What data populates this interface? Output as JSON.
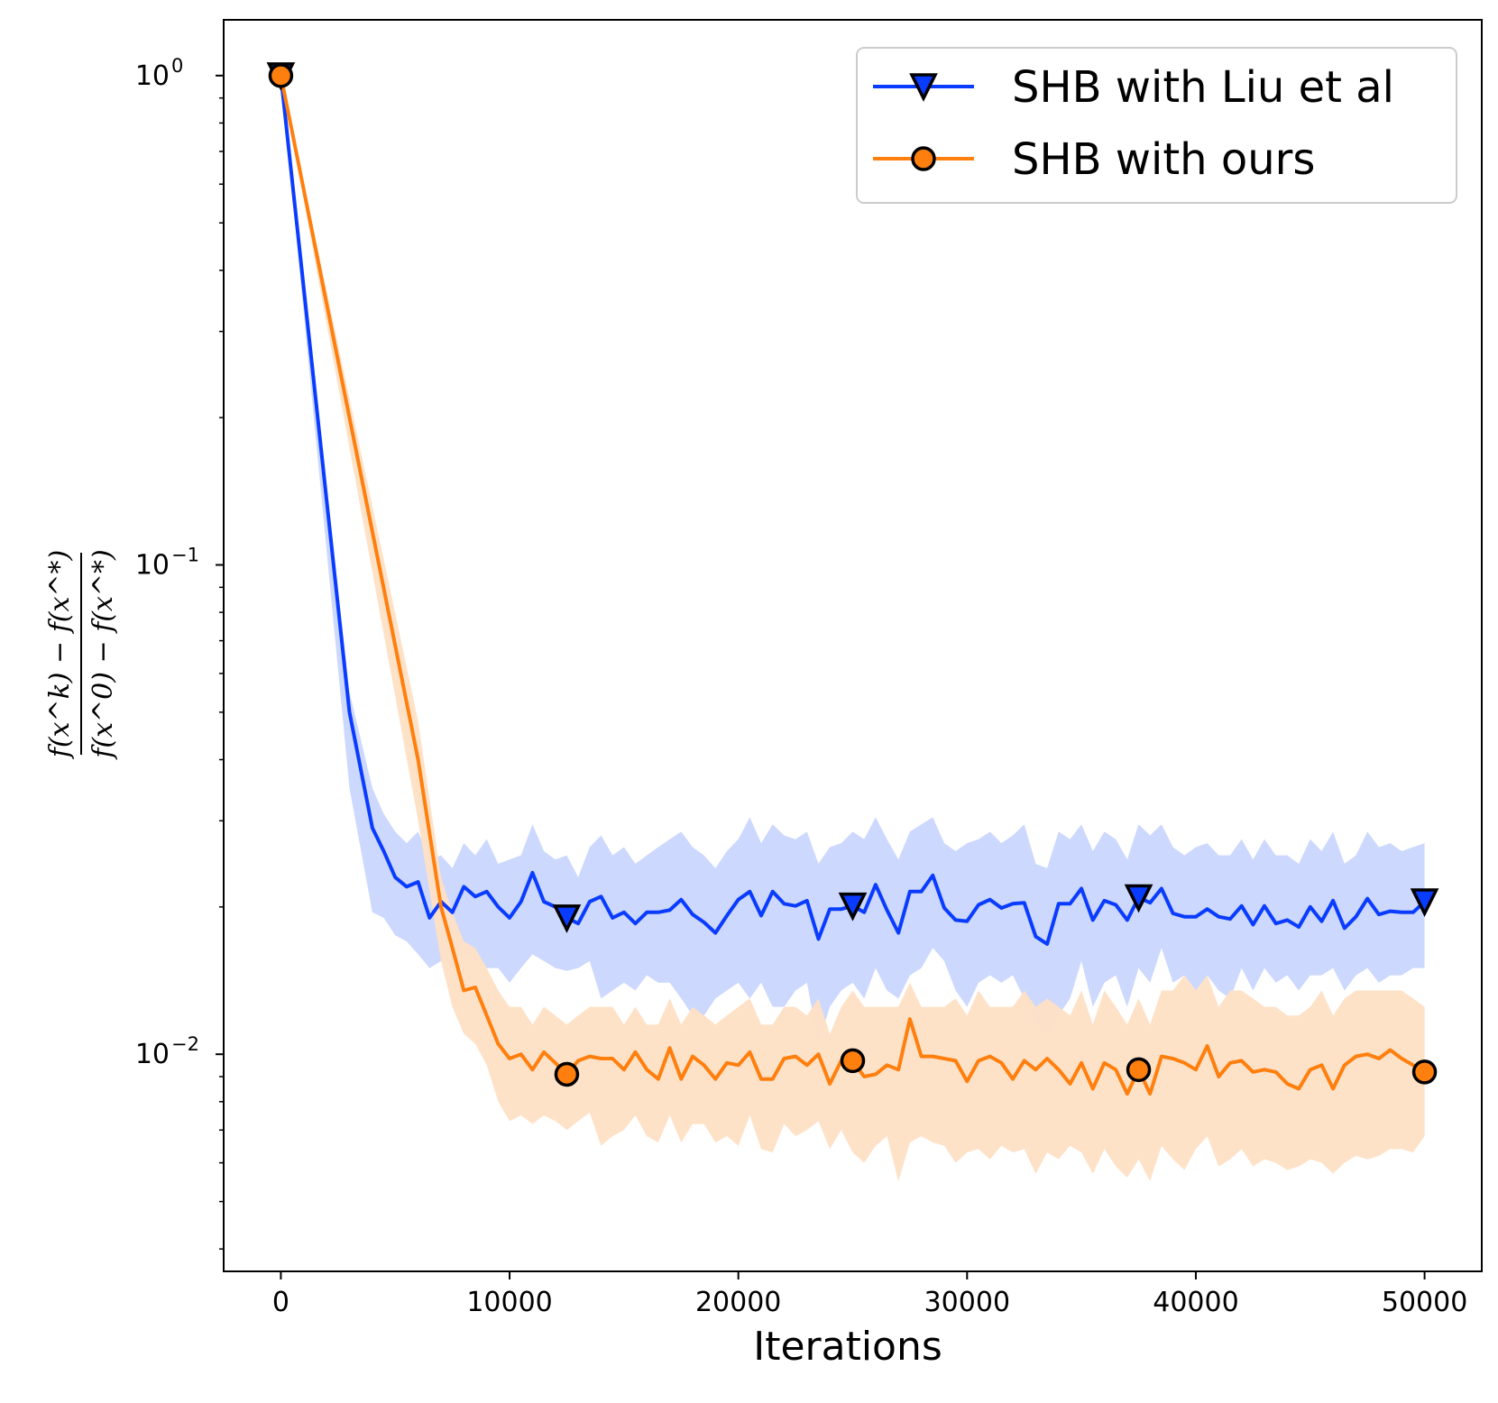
{
  "chart_data": {
    "type": "line",
    "yscale": "log",
    "xlabel": "Iterations",
    "ylabel": {
      "numerator": "f(x^k) − f(x^*)",
      "denominator": "f(x^0) − f(x^*)"
    },
    "xlim": [
      -2500,
      52500
    ],
    "ylim": [
      0.0036,
      1.3
    ],
    "xticks": [
      0,
      10000,
      20000,
      30000,
      40000,
      50000
    ],
    "xtick_labels": [
      "0",
      "10000",
      "20000",
      "30000",
      "40000",
      "50000"
    ],
    "yticks": [
      {
        "value": 1,
        "base": "10",
        "exp": "0"
      },
      {
        "value": 0.1,
        "base": "10",
        "exp": "−1"
      },
      {
        "value": 0.01,
        "base": "10",
        "exp": "−2"
      }
    ],
    "legend_position": "upper right",
    "series": [
      {
        "name": "SHB with Liu et al",
        "color": "#0a3cff",
        "band_color": "#c9d6fd",
        "marker": "triangle-down",
        "marker_x": [
          0,
          12500,
          25000,
          37500,
          50000
        ],
        "x": [
          0,
          3000,
          4000,
          4500,
          5000,
          5500,
          6000,
          6500,
          7000,
          7500,
          8000,
          8500,
          9000,
          9500,
          10000,
          10500,
          11000,
          11500,
          12000,
          12500,
          13000,
          13500,
          14000,
          14500,
          15000,
          15500,
          16000,
          16500,
          17000,
          17500,
          18000,
          18500,
          19000,
          19500,
          20000,
          20500,
          21000,
          21500,
          22000,
          22500,
          23000,
          23500,
          24000,
          24500,
          25000,
          25500,
          26000,
          26500,
          27000,
          27500,
          28000,
          28500,
          29000,
          29500,
          30000,
          30500,
          31000,
          31500,
          32000,
          32500,
          33000,
          33500,
          34000,
          34500,
          35000,
          35500,
          36000,
          36500,
          37000,
          37500,
          38000,
          38500,
          39000,
          39500,
          40000,
          40500,
          41000,
          41500,
          42000,
          42500,
          43000,
          43500,
          44000,
          44500,
          45000,
          45500,
          46000,
          46500,
          47000,
          47500,
          48000,
          48500,
          49000,
          49500,
          50000
        ],
        "y": [
          1.0,
          0.05,
          0.029,
          0.026,
          0.023,
          0.022,
          0.0225,
          0.019,
          0.0205,
          0.0195,
          0.022,
          0.021,
          0.0215,
          0.02,
          0.019,
          0.0205,
          0.0235,
          0.0205,
          0.02,
          0.019,
          0.0185,
          0.0205,
          0.021,
          0.019,
          0.0195,
          0.0185,
          0.0195,
          0.0195,
          0.0197,
          0.0207,
          0.0193,
          0.0186,
          0.0177,
          0.0192,
          0.0207,
          0.0215,
          0.0192,
          0.0215,
          0.0203,
          0.0201,
          0.0206,
          0.0172,
          0.0198,
          0.0198,
          0.0201,
          0.0195,
          0.0222,
          0.0197,
          0.0177,
          0.0215,
          0.0215,
          0.0232,
          0.0199,
          0.0188,
          0.0187,
          0.0202,
          0.0207,
          0.0199,
          0.0203,
          0.0204,
          0.0174,
          0.0168,
          0.0203,
          0.0203,
          0.0218,
          0.0188,
          0.0206,
          0.0202,
          0.0188,
          0.0209,
          0.0204,
          0.0218,
          0.0194,
          0.0191,
          0.0191,
          0.0198,
          0.0191,
          0.0189,
          0.0201,
          0.0184,
          0.0201,
          0.0185,
          0.0188,
          0.0182,
          0.02,
          0.0187,
          0.0206,
          0.0181,
          0.0191,
          0.0208,
          0.0193,
          0.0196,
          0.0195,
          0.0195,
          0.0205
        ],
        "lower": [
          1.0,
          0.035,
          0.0195,
          0.019,
          0.0175,
          0.017,
          0.016,
          0.015,
          0.0155,
          0.015,
          0.016,
          0.0155,
          0.015,
          0.015,
          0.014,
          0.015,
          0.016,
          0.0155,
          0.015,
          0.0148,
          0.015,
          0.0155,
          0.013,
          0.0135,
          0.014,
          0.0135,
          0.0145,
          0.014,
          0.014,
          0.013,
          0.012,
          0.012,
          0.013,
          0.0135,
          0.014,
          0.013,
          0.014,
          0.0125,
          0.0125,
          0.0135,
          0.014,
          0.0105,
          0.0125,
          0.0135,
          0.014,
          0.013,
          0.015,
          0.0135,
          0.013,
          0.0145,
          0.015,
          0.0165,
          0.0155,
          0.0135,
          0.0125,
          0.014,
          0.0145,
          0.014,
          0.0145,
          0.013,
          0.0115,
          0.0108,
          0.012,
          0.013,
          0.0155,
          0.0125,
          0.014,
          0.0145,
          0.0125,
          0.015,
          0.014,
          0.0165,
          0.014,
          0.0145,
          0.0135,
          0.0145,
          0.0135,
          0.013,
          0.015,
          0.0135,
          0.015,
          0.014,
          0.0145,
          0.0135,
          0.0145,
          0.0145,
          0.015,
          0.0135,
          0.0145,
          0.015,
          0.014,
          0.0145,
          0.0145,
          0.015,
          0.015
        ],
        "upper": [
          1.0,
          0.055,
          0.035,
          0.031,
          0.0285,
          0.027,
          0.0285,
          0.025,
          0.0255,
          0.024,
          0.027,
          0.0255,
          0.0275,
          0.0245,
          0.025,
          0.0255,
          0.0295,
          0.026,
          0.025,
          0.0255,
          0.023,
          0.0265,
          0.028,
          0.0255,
          0.0265,
          0.0245,
          0.0255,
          0.0265,
          0.0275,
          0.0285,
          0.0265,
          0.0255,
          0.024,
          0.026,
          0.0275,
          0.0305,
          0.027,
          0.0295,
          0.028,
          0.0275,
          0.0285,
          0.0245,
          0.0265,
          0.027,
          0.0285,
          0.0275,
          0.0305,
          0.0275,
          0.025,
          0.0285,
          0.0295,
          0.0305,
          0.027,
          0.026,
          0.027,
          0.0275,
          0.0285,
          0.027,
          0.028,
          0.0295,
          0.0245,
          0.024,
          0.0285,
          0.0275,
          0.0295,
          0.026,
          0.0285,
          0.0275,
          0.025,
          0.0295,
          0.028,
          0.0295,
          0.0265,
          0.0255,
          0.0265,
          0.027,
          0.0255,
          0.0255,
          0.0275,
          0.025,
          0.0275,
          0.0255,
          0.0255,
          0.0245,
          0.0275,
          0.026,
          0.0285,
          0.0245,
          0.0255,
          0.0285,
          0.0265,
          0.027,
          0.026,
          0.0265,
          0.027
        ]
      },
      {
        "name": "SHB with ours",
        "color": "#ff7f0e",
        "band_color": "#fee0c5",
        "marker": "circle",
        "marker_x": [
          0,
          12500,
          25000,
          37500,
          50000
        ],
        "x": [
          0,
          6000,
          7000,
          7500,
          8000,
          8500,
          9000,
          9500,
          10000,
          10500,
          11000,
          11500,
          12000,
          12500,
          13000,
          13500,
          14000,
          14500,
          15000,
          15500,
          16000,
          16500,
          17000,
          17500,
          18000,
          18500,
          19000,
          19500,
          20000,
          20500,
          21000,
          21500,
          22000,
          22500,
          23000,
          23500,
          24000,
          24500,
          25000,
          25500,
          26000,
          26500,
          27000,
          27500,
          28000,
          28500,
          29000,
          29500,
          30000,
          30500,
          31000,
          31500,
          32000,
          32500,
          33000,
          33500,
          34000,
          34500,
          35000,
          35500,
          36000,
          36500,
          37000,
          37500,
          38000,
          38500,
          39000,
          39500,
          40000,
          40500,
          41000,
          41500,
          42000,
          42500,
          43000,
          43500,
          44000,
          44500,
          45000,
          45500,
          46000,
          46500,
          47000,
          47500,
          48000,
          48500,
          49000,
          49500,
          50000
        ],
        "y": [
          1.0,
          0.04,
          0.02,
          0.0165,
          0.0135,
          0.0137,
          0.012,
          0.0105,
          0.0098,
          0.01,
          0.0093,
          0.0101,
          0.0096,
          0.0091,
          0.0097,
          0.0099,
          0.0098,
          0.0098,
          0.0093,
          0.0101,
          0.0093,
          0.0089,
          0.0103,
          0.0089,
          0.0099,
          0.0095,
          0.0089,
          0.0096,
          0.0095,
          0.0101,
          0.0089,
          0.0089,
          0.0098,
          0.0099,
          0.0095,
          0.01,
          0.0087,
          0.0097,
          0.0097,
          0.009,
          0.0091,
          0.0095,
          0.0093,
          0.0118,
          0.0099,
          0.0099,
          0.0098,
          0.0097,
          0.0088,
          0.0097,
          0.0099,
          0.0096,
          0.0089,
          0.0097,
          0.0093,
          0.0098,
          0.0093,
          0.0087,
          0.0096,
          0.0085,
          0.0096,
          0.0093,
          0.0083,
          0.0093,
          0.0083,
          0.0099,
          0.0098,
          0.0096,
          0.0093,
          0.0104,
          0.009,
          0.0096,
          0.0097,
          0.0092,
          0.0093,
          0.0092,
          0.0087,
          0.0085,
          0.0093,
          0.0095,
          0.0085,
          0.0095,
          0.0099,
          0.01,
          0.0098,
          0.0102,
          0.0098,
          0.0095,
          0.0092
        ],
        "lower": [
          1.0,
          0.03,
          0.0155,
          0.0125,
          0.011,
          0.0105,
          0.0095,
          0.008,
          0.0073,
          0.0075,
          0.0072,
          0.0075,
          0.0073,
          0.007,
          0.0073,
          0.0076,
          0.0065,
          0.0068,
          0.007,
          0.0075,
          0.0068,
          0.0066,
          0.0075,
          0.0066,
          0.0072,
          0.0072,
          0.0066,
          0.0068,
          0.0065,
          0.0075,
          0.0064,
          0.0063,
          0.0072,
          0.0068,
          0.007,
          0.0073,
          0.0064,
          0.007,
          0.0063,
          0.006,
          0.0065,
          0.0068,
          0.0055,
          0.0066,
          0.0068,
          0.0066,
          0.0065,
          0.006,
          0.0063,
          0.0064,
          0.0061,
          0.0065,
          0.0063,
          0.0064,
          0.0057,
          0.0063,
          0.0061,
          0.0065,
          0.0063,
          0.0057,
          0.0064,
          0.0059,
          0.0056,
          0.0061,
          0.0055,
          0.0065,
          0.0061,
          0.0058,
          0.0064,
          0.0068,
          0.0059,
          0.0061,
          0.0064,
          0.0059,
          0.0061,
          0.006,
          0.0058,
          0.0059,
          0.0061,
          0.006,
          0.0057,
          0.006,
          0.0062,
          0.0061,
          0.0062,
          0.0064,
          0.0064,
          0.0063,
          0.0068
        ],
        "upper": [
          1.0,
          0.048,
          0.023,
          0.0195,
          0.017,
          0.0165,
          0.015,
          0.0135,
          0.0125,
          0.0125,
          0.0115,
          0.0125,
          0.012,
          0.0115,
          0.012,
          0.0125,
          0.0125,
          0.0125,
          0.0115,
          0.0125,
          0.0115,
          0.0115,
          0.013,
          0.0115,
          0.0125,
          0.012,
          0.0115,
          0.012,
          0.0125,
          0.013,
          0.0115,
          0.0115,
          0.0125,
          0.0125,
          0.012,
          0.013,
          0.011,
          0.0125,
          0.0135,
          0.0125,
          0.0125,
          0.0125,
          0.0125,
          0.014,
          0.0125,
          0.0125,
          0.0125,
          0.013,
          0.012,
          0.0135,
          0.0125,
          0.0125,
          0.0125,
          0.0135,
          0.0125,
          0.013,
          0.0125,
          0.012,
          0.0135,
          0.0115,
          0.0135,
          0.0125,
          0.0115,
          0.013,
          0.0115,
          0.0135,
          0.0135,
          0.0145,
          0.0135,
          0.0145,
          0.0125,
          0.0135,
          0.0135,
          0.013,
          0.0125,
          0.0125,
          0.012,
          0.012,
          0.0125,
          0.0135,
          0.012,
          0.013,
          0.0135,
          0.0135,
          0.0135,
          0.0135,
          0.0135,
          0.013,
          0.0125
        ]
      }
    ]
  }
}
